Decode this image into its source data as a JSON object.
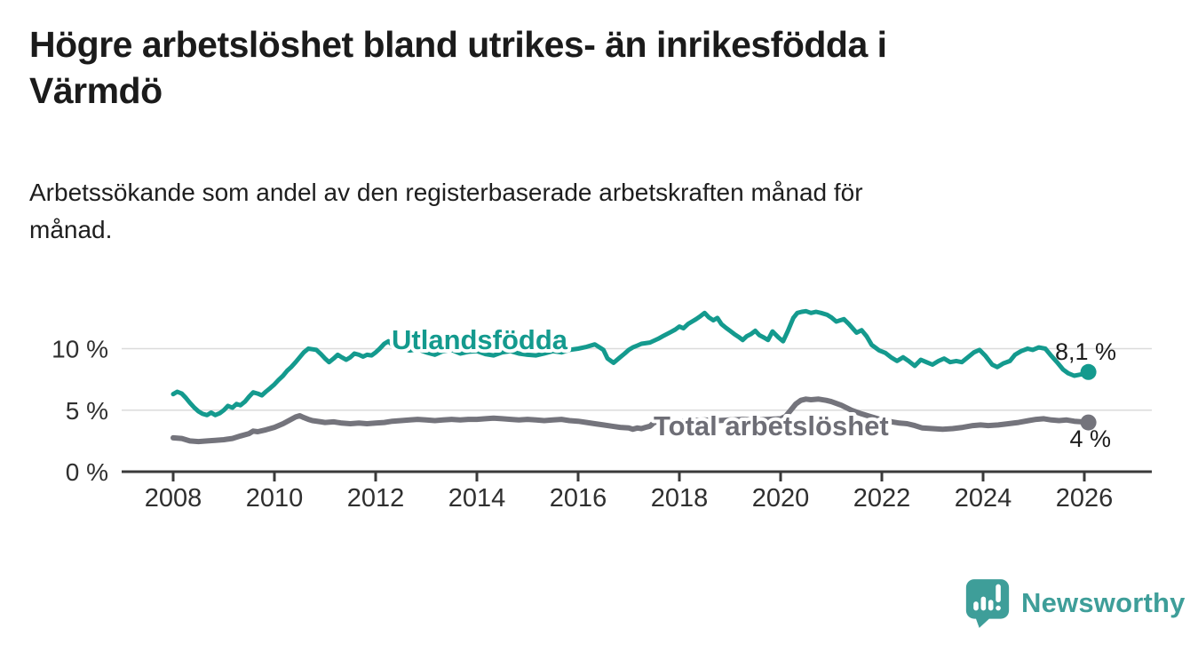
{
  "header": {
    "title": "Högre arbetslöshet bland utrikes- än inrikesfödda i Värmdö",
    "title_lines": [
      "Högre arbetslöshet bland utrikes- än inrikesfödda i",
      "Värmdö"
    ],
    "subtitle": "Arbetssökande som andel av den registerbaserade arbetskraften månad för månad.",
    "subtitle_lines": [
      "Arbetssökande som andel av den registerbaserade arbetskraften månad för",
      "månad."
    ]
  },
  "branding": {
    "name": "Newsworthy",
    "icon": "bar-chart-speech-bubble-icon",
    "color": "#3E9E99"
  },
  "chart_data": {
    "type": "line",
    "title": "",
    "xlabel": "",
    "ylabel": "",
    "x_axis": {
      "tick_years": [
        2008,
        2010,
        2012,
        2014,
        2016,
        2018,
        2020,
        2022,
        2024,
        2026
      ],
      "range": [
        2007.6,
        2026.4
      ]
    },
    "y_axis": {
      "unit": "%",
      "ticks": [
        {
          "value": 0,
          "label": "0 %"
        },
        {
          "value": 5,
          "label": "5 %"
        },
        {
          "value": 10,
          "label": "10 %"
        }
      ],
      "gridlines": [
        5,
        10
      ],
      "range": [
        0,
        13.5
      ]
    },
    "style": {
      "grid_color": "#DBDBDB",
      "axis_color": "#3A3A3A",
      "tick_label_color": "#2F2F2F",
      "value_label_color": "#1D1D1D"
    },
    "legend_position": "inline-labels",
    "series": [
      {
        "id": "utlandsfodda",
        "name": "Utlandsfödda",
        "color": "#149A8E",
        "line_width": 5,
        "end_label": "8,1 %",
        "end_value": 8.1,
        "points": [
          [
            2008.0,
            6.3
          ],
          [
            2008.08,
            6.5
          ],
          [
            2008.17,
            6.35
          ],
          [
            2008.25,
            6.0
          ],
          [
            2008.33,
            5.6
          ],
          [
            2008.42,
            5.2
          ],
          [
            2008.5,
            4.9
          ],
          [
            2008.58,
            4.7
          ],
          [
            2008.67,
            4.6
          ],
          [
            2008.75,
            4.8
          ],
          [
            2008.83,
            4.6
          ],
          [
            2008.92,
            4.75
          ],
          [
            2009.0,
            5.0
          ],
          [
            2009.08,
            5.35
          ],
          [
            2009.17,
            5.2
          ],
          [
            2009.25,
            5.5
          ],
          [
            2009.33,
            5.4
          ],
          [
            2009.42,
            5.7
          ],
          [
            2009.5,
            6.1
          ],
          [
            2009.58,
            6.45
          ],
          [
            2009.67,
            6.35
          ],
          [
            2009.75,
            6.2
          ],
          [
            2009.83,
            6.5
          ],
          [
            2009.92,
            6.8
          ],
          [
            2010.0,
            7.1
          ],
          [
            2010.08,
            7.45
          ],
          [
            2010.17,
            7.8
          ],
          [
            2010.25,
            8.2
          ],
          [
            2010.33,
            8.5
          ],
          [
            2010.42,
            8.9
          ],
          [
            2010.5,
            9.3
          ],
          [
            2010.58,
            9.7
          ],
          [
            2010.67,
            10.0
          ],
          [
            2010.75,
            9.95
          ],
          [
            2010.83,
            9.9
          ],
          [
            2010.92,
            9.55
          ],
          [
            2011.0,
            9.2
          ],
          [
            2011.08,
            8.9
          ],
          [
            2011.17,
            9.2
          ],
          [
            2011.25,
            9.5
          ],
          [
            2011.33,
            9.3
          ],
          [
            2011.42,
            9.1
          ],
          [
            2011.5,
            9.3
          ],
          [
            2011.58,
            9.6
          ],
          [
            2011.67,
            9.5
          ],
          [
            2011.75,
            9.35
          ],
          [
            2011.83,
            9.5
          ],
          [
            2011.92,
            9.45
          ],
          [
            2012.0,
            9.7
          ],
          [
            2012.08,
            10.0
          ],
          [
            2012.17,
            10.4
          ],
          [
            2012.25,
            10.6
          ],
          [
            2012.33,
            10.3
          ],
          [
            2012.5,
            10.1
          ],
          [
            2012.67,
            9.85
          ],
          [
            2012.83,
            9.95
          ],
          [
            2013.0,
            9.7
          ],
          [
            2013.17,
            9.5
          ],
          [
            2013.33,
            9.8
          ],
          [
            2013.5,
            9.9
          ],
          [
            2013.67,
            9.6
          ],
          [
            2013.83,
            9.75
          ],
          [
            2014.0,
            9.8
          ],
          [
            2014.17,
            9.55
          ],
          [
            2014.33,
            9.45
          ],
          [
            2014.5,
            9.7
          ],
          [
            2014.67,
            9.8
          ],
          [
            2014.83,
            9.6
          ],
          [
            2015.0,
            9.5
          ],
          [
            2015.17,
            9.45
          ],
          [
            2015.33,
            9.6
          ],
          [
            2015.5,
            9.8
          ],
          [
            2015.67,
            9.7
          ],
          [
            2015.83,
            9.9
          ],
          [
            2016.0,
            10.0
          ],
          [
            2016.17,
            10.15
          ],
          [
            2016.33,
            10.35
          ],
          [
            2016.5,
            9.9
          ],
          [
            2016.58,
            9.2
          ],
          [
            2016.7,
            8.85
          ],
          [
            2016.83,
            9.3
          ],
          [
            2016.92,
            9.6
          ],
          [
            2017.0,
            9.9
          ],
          [
            2017.08,
            10.1
          ],
          [
            2017.17,
            10.25
          ],
          [
            2017.25,
            10.4
          ],
          [
            2017.42,
            10.5
          ],
          [
            2017.5,
            10.65
          ],
          [
            2017.58,
            10.8
          ],
          [
            2017.67,
            11.0
          ],
          [
            2017.83,
            11.35
          ],
          [
            2017.92,
            11.55
          ],
          [
            2018.0,
            11.8
          ],
          [
            2018.08,
            11.65
          ],
          [
            2018.17,
            12.0
          ],
          [
            2018.25,
            12.2
          ],
          [
            2018.33,
            12.4
          ],
          [
            2018.42,
            12.65
          ],
          [
            2018.5,
            12.9
          ],
          [
            2018.58,
            12.55
          ],
          [
            2018.67,
            12.3
          ],
          [
            2018.75,
            12.5
          ],
          [
            2018.83,
            12.0
          ],
          [
            2018.92,
            11.7
          ],
          [
            2019.0,
            11.45
          ],
          [
            2019.08,
            11.2
          ],
          [
            2019.17,
            10.95
          ],
          [
            2019.25,
            10.7
          ],
          [
            2019.33,
            11.0
          ],
          [
            2019.42,
            11.2
          ],
          [
            2019.5,
            11.45
          ],
          [
            2019.58,
            11.1
          ],
          [
            2019.67,
            10.9
          ],
          [
            2019.75,
            10.7
          ],
          [
            2019.84,
            11.4
          ],
          [
            2019.96,
            10.9
          ],
          [
            2020.05,
            10.6
          ],
          [
            2020.14,
            11.4
          ],
          [
            2020.25,
            12.5
          ],
          [
            2020.33,
            12.9
          ],
          [
            2020.42,
            13.0
          ],
          [
            2020.5,
            13.05
          ],
          [
            2020.6,
            12.9
          ],
          [
            2020.7,
            13.0
          ],
          [
            2020.8,
            12.9
          ],
          [
            2020.92,
            12.75
          ],
          [
            2021.0,
            12.55
          ],
          [
            2021.1,
            12.2
          ],
          [
            2021.25,
            12.4
          ],
          [
            2021.35,
            12.0
          ],
          [
            2021.5,
            11.3
          ],
          [
            2021.6,
            11.5
          ],
          [
            2021.7,
            11.0
          ],
          [
            2021.8,
            10.3
          ],
          [
            2021.95,
            9.85
          ],
          [
            2022.07,
            9.65
          ],
          [
            2022.18,
            9.3
          ],
          [
            2022.3,
            9.0
          ],
          [
            2022.42,
            9.3
          ],
          [
            2022.53,
            9.0
          ],
          [
            2022.65,
            8.6
          ],
          [
            2022.77,
            9.1
          ],
          [
            2022.88,
            8.9
          ],
          [
            2023.0,
            8.7
          ],
          [
            2023.12,
            9.0
          ],
          [
            2023.23,
            9.2
          ],
          [
            2023.35,
            8.9
          ],
          [
            2023.47,
            9.0
          ],
          [
            2023.58,
            8.9
          ],
          [
            2023.7,
            9.3
          ],
          [
            2023.82,
            9.7
          ],
          [
            2023.93,
            9.9
          ],
          [
            2024.05,
            9.4
          ],
          [
            2024.18,
            8.7
          ],
          [
            2024.28,
            8.5
          ],
          [
            2024.4,
            8.8
          ],
          [
            2024.53,
            9.0
          ],
          [
            2024.63,
            9.5
          ],
          [
            2024.75,
            9.8
          ],
          [
            2024.88,
            10.0
          ],
          [
            2024.98,
            9.9
          ],
          [
            2025.1,
            10.1
          ],
          [
            2025.23,
            10.0
          ],
          [
            2025.33,
            9.5
          ],
          [
            2025.46,
            8.9
          ],
          [
            2025.58,
            8.3
          ],
          [
            2025.68,
            8.0
          ],
          [
            2025.8,
            7.8
          ],
          [
            2025.93,
            7.9
          ],
          [
            2026.08,
            8.1
          ]
        ]
      },
      {
        "id": "total",
        "name": "Total arbetslöshet",
        "color": "#74747C",
        "label_color": "#6E6E76",
        "line_width": 6,
        "end_label": "4 %",
        "end_value": 4.0,
        "points": [
          [
            2008.0,
            2.75
          ],
          [
            2008.17,
            2.7
          ],
          [
            2008.33,
            2.5
          ],
          [
            2008.5,
            2.45
          ],
          [
            2008.67,
            2.5
          ],
          [
            2008.83,
            2.55
          ],
          [
            2009.0,
            2.6
          ],
          [
            2009.17,
            2.7
          ],
          [
            2009.33,
            2.9
          ],
          [
            2009.5,
            3.1
          ],
          [
            2009.58,
            3.3
          ],
          [
            2009.67,
            3.25
          ],
          [
            2009.83,
            3.4
          ],
          [
            2010.0,
            3.6
          ],
          [
            2010.17,
            3.9
          ],
          [
            2010.33,
            4.25
          ],
          [
            2010.42,
            4.45
          ],
          [
            2010.5,
            4.55
          ],
          [
            2010.58,
            4.4
          ],
          [
            2010.67,
            4.25
          ],
          [
            2010.75,
            4.15
          ],
          [
            2010.92,
            4.05
          ],
          [
            2011.0,
            4.0
          ],
          [
            2011.17,
            4.05
          ],
          [
            2011.33,
            3.95
          ],
          [
            2011.5,
            3.9
          ],
          [
            2011.67,
            3.95
          ],
          [
            2011.83,
            3.9
          ],
          [
            2012.0,
            3.95
          ],
          [
            2012.17,
            4.0
          ],
          [
            2012.33,
            4.1
          ],
          [
            2012.5,
            4.15
          ],
          [
            2012.67,
            4.2
          ],
          [
            2012.83,
            4.25
          ],
          [
            2013.0,
            4.2
          ],
          [
            2013.17,
            4.15
          ],
          [
            2013.33,
            4.2
          ],
          [
            2013.5,
            4.25
          ],
          [
            2013.67,
            4.2
          ],
          [
            2013.83,
            4.25
          ],
          [
            2014.0,
            4.25
          ],
          [
            2014.17,
            4.3
          ],
          [
            2014.33,
            4.35
          ],
          [
            2014.5,
            4.3
          ],
          [
            2014.67,
            4.25
          ],
          [
            2014.83,
            4.2
          ],
          [
            2015.0,
            4.25
          ],
          [
            2015.17,
            4.2
          ],
          [
            2015.33,
            4.15
          ],
          [
            2015.5,
            4.2
          ],
          [
            2015.67,
            4.25
          ],
          [
            2015.83,
            4.15
          ],
          [
            2016.0,
            4.1
          ],
          [
            2016.17,
            4.0
          ],
          [
            2016.33,
            3.9
          ],
          [
            2016.5,
            3.8
          ],
          [
            2016.67,
            3.7
          ],
          [
            2016.83,
            3.6
          ],
          [
            2017.0,
            3.55
          ],
          [
            2017.08,
            3.45
          ],
          [
            2017.17,
            3.55
          ],
          [
            2017.25,
            3.5
          ],
          [
            2017.33,
            3.6
          ],
          [
            2017.42,
            3.7
          ],
          [
            2017.5,
            4.0
          ],
          [
            2017.58,
            4.05
          ],
          [
            2017.67,
            4.1
          ],
          [
            2017.83,
            4.05
          ],
          [
            2018.0,
            4.1
          ],
          [
            2018.25,
            4.15
          ],
          [
            2018.5,
            4.2
          ],
          [
            2018.75,
            4.15
          ],
          [
            2019.0,
            4.2
          ],
          [
            2019.25,
            4.25
          ],
          [
            2019.5,
            4.2
          ],
          [
            2019.75,
            4.25
          ],
          [
            2020.0,
            4.3
          ],
          [
            2020.1,
            4.5
          ],
          [
            2020.2,
            5.0
          ],
          [
            2020.3,
            5.5
          ],
          [
            2020.4,
            5.8
          ],
          [
            2020.5,
            5.9
          ],
          [
            2020.6,
            5.85
          ],
          [
            2020.75,
            5.9
          ],
          [
            2020.9,
            5.8
          ],
          [
            2021.0,
            5.7
          ],
          [
            2021.2,
            5.4
          ],
          [
            2021.4,
            5.0
          ],
          [
            2021.6,
            4.7
          ],
          [
            2021.8,
            4.45
          ],
          [
            2022.0,
            4.2
          ],
          [
            2022.2,
            4.05
          ],
          [
            2022.35,
            3.95
          ],
          [
            2022.5,
            3.9
          ],
          [
            2022.65,
            3.75
          ],
          [
            2022.8,
            3.55
          ],
          [
            2023.0,
            3.5
          ],
          [
            2023.2,
            3.45
          ],
          [
            2023.4,
            3.5
          ],
          [
            2023.6,
            3.6
          ],
          [
            2023.8,
            3.75
          ],
          [
            2023.95,
            3.8
          ],
          [
            2024.1,
            3.75
          ],
          [
            2024.3,
            3.8
          ],
          [
            2024.5,
            3.9
          ],
          [
            2024.7,
            4.0
          ],
          [
            2024.9,
            4.15
          ],
          [
            2025.05,
            4.25
          ],
          [
            2025.2,
            4.3
          ],
          [
            2025.35,
            4.2
          ],
          [
            2025.5,
            4.15
          ],
          [
            2025.65,
            4.2
          ],
          [
            2025.8,
            4.1
          ],
          [
            2025.95,
            4.05
          ],
          [
            2026.08,
            4.0
          ]
        ]
      }
    ]
  }
}
